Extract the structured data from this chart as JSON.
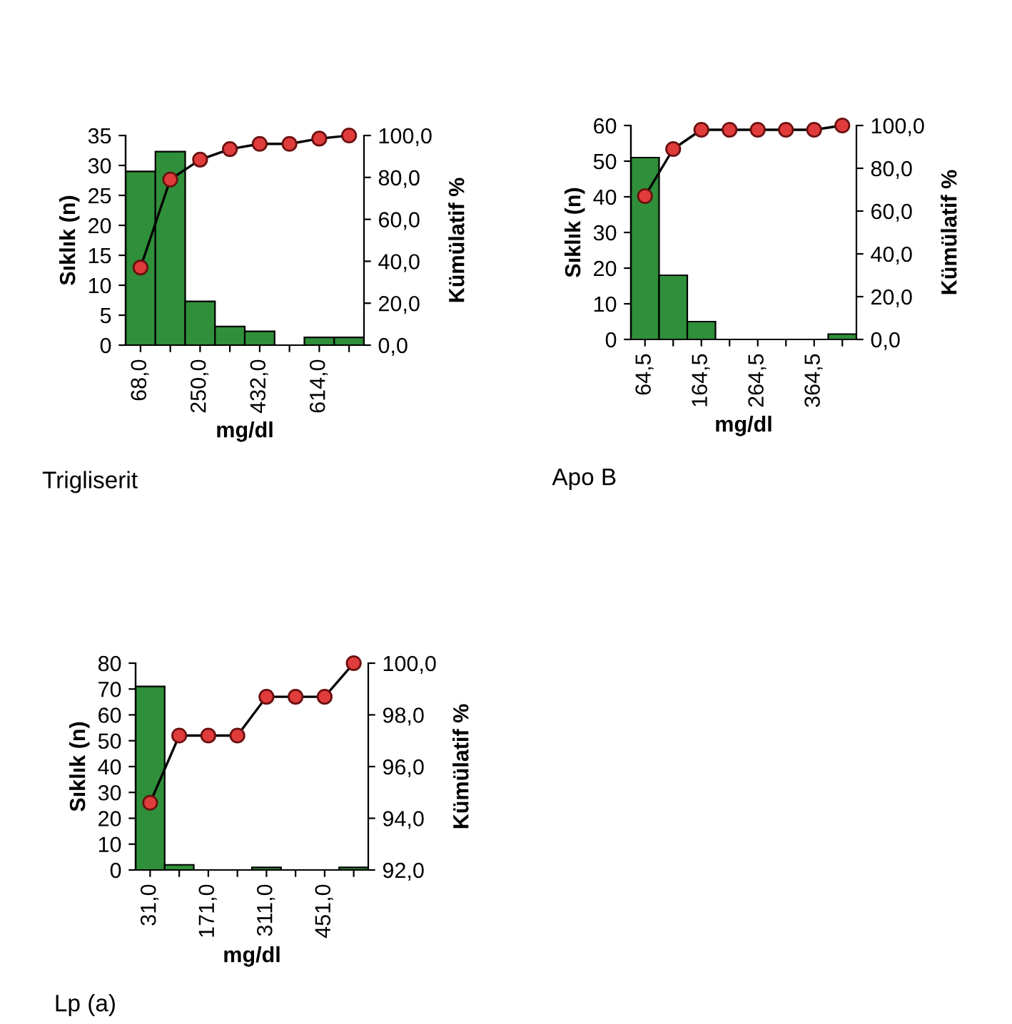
{
  "chart_data": [
    {
      "type": "bar",
      "title": "Trigliserit",
      "xlabel": "mg/dl",
      "ylabel": "Sıklık (n)",
      "y2label": "Kümülatif %",
      "categories": [
        "68,0",
        null,
        "250,0",
        null,
        "432,0",
        null,
        "614,0",
        null
      ],
      "series": [
        {
          "color": "#2f8f3a",
          "values": [
            29,
            32.3,
            7.3,
            3.1,
            2.3,
            0,
            1.3,
            1.3
          ]
        },
        {
          "type": "line",
          "axis": "y2",
          "color": "#e03c3c",
          "marker": "circle",
          "values": [
            37,
            79,
            88.5,
            93.5,
            96,
            96,
            98.5,
            100
          ]
        }
      ],
      "ylim": [
        0,
        35
      ],
      "yticks": [
        0,
        5,
        10,
        15,
        20,
        25,
        30,
        35
      ],
      "y2lim": [
        0,
        100
      ],
      "y2ticks": [
        {
          "value": 0,
          "label": "0,0"
        },
        {
          "value": 20,
          "label": "20,0"
        },
        {
          "value": 40,
          "label": "40,0"
        },
        {
          "value": 60,
          "label": "60,0"
        },
        {
          "value": 80,
          "label": "80,0"
        },
        {
          "value": 100,
          "label": "100,0"
        }
      ],
      "grid": false,
      "legend": false
    },
    {
      "type": "bar",
      "title": "Apo B",
      "xlabel": "mg/dl",
      "ylabel": "Sıklık (n)",
      "y2label": "Kümülatif %",
      "categories": [
        "64,5",
        null,
        "164,5",
        null,
        "264,5",
        null,
        "364,5",
        null
      ],
      "series": [
        {
          "color": "#2f8f3a",
          "values": [
            51,
            18,
            5,
            0,
            0,
            0,
            0,
            1.5
          ]
        },
        {
          "type": "line",
          "axis": "y2",
          "color": "#e03c3c",
          "marker": "circle",
          "values": [
            67,
            89,
            98,
            98,
            98,
            98,
            98,
            100
          ]
        }
      ],
      "ylim": [
        0,
        60
      ],
      "yticks": [
        0,
        10,
        20,
        30,
        40,
        50,
        60
      ],
      "y2lim": [
        0,
        100
      ],
      "y2ticks": [
        {
          "value": 0,
          "label": "0,0"
        },
        {
          "value": 20,
          "label": "20,0"
        },
        {
          "value": 40,
          "label": "40,0"
        },
        {
          "value": 60,
          "label": "60,0"
        },
        {
          "value": 80,
          "label": "80,0"
        },
        {
          "value": 100,
          "label": "100,0"
        }
      ],
      "grid": false,
      "legend": false
    },
    {
      "type": "bar",
      "title": "Lp (a)",
      "xlabel": "mg/dl",
      "ylabel": "Sıklık (n)",
      "y2label": "Kümülatif %",
      "categories": [
        "31,0",
        null,
        "171,0",
        null,
        "311,0",
        null,
        "451,0",
        null
      ],
      "series": [
        {
          "color": "#2f8f3a",
          "values": [
            71,
            2,
            0,
            0,
            1,
            0,
            0,
            1
          ]
        },
        {
          "type": "line",
          "axis": "y2",
          "color": "#e03c3c",
          "marker": "circle",
          "values": [
            94.6,
            97.2,
            97.2,
            97.2,
            98.7,
            98.7,
            98.7,
            100
          ]
        }
      ],
      "ylim": [
        0,
        80
      ],
      "yticks": [
        0,
        10,
        20,
        30,
        40,
        50,
        60,
        70,
        80
      ],
      "y2lim": [
        92,
        100
      ],
      "y2ticks": [
        {
          "value": 92,
          "label": "92,0"
        },
        {
          "value": 94,
          "label": "94,0"
        },
        {
          "value": 96,
          "label": "96,0"
        },
        {
          "value": 98,
          "label": "98,0"
        },
        {
          "value": 100,
          "label": "100,0"
        }
      ],
      "grid": false,
      "legend": false
    }
  ]
}
